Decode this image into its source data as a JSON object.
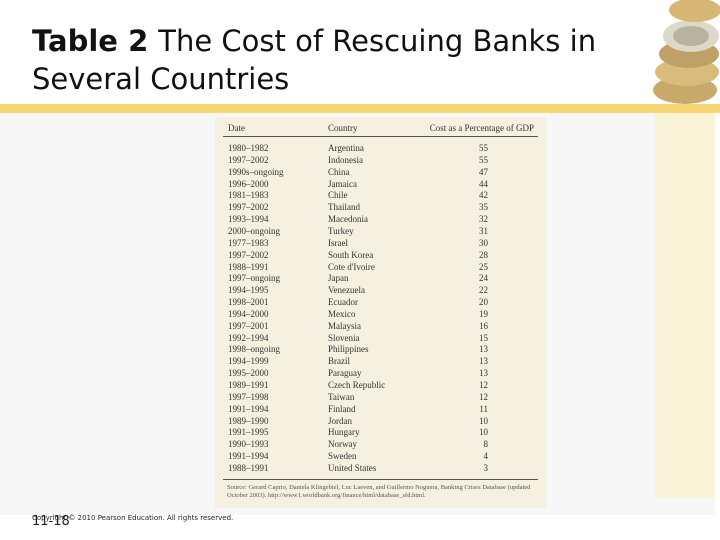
{
  "header": {
    "title_bold": "Table 2",
    "title": "The Cost of Rescuing Banks in Several Countries"
  },
  "table": {
    "columns": [
      "Date",
      "Country",
      "Cost as a Percentage of GDP"
    ],
    "rows": [
      [
        "1980–1982",
        "Argentina",
        55
      ],
      [
        "1997–2002",
        "Indonesia",
        55
      ],
      [
        "1990s–ongoing",
        "China",
        47
      ],
      [
        "1996–2000",
        "Jamaica",
        44
      ],
      [
        "1981–1983",
        "Chile",
        42
      ],
      [
        "1997–2002",
        "Thailand",
        35
      ],
      [
        "1993–1994",
        "Macedonia",
        32
      ],
      [
        "2000–ongoing",
        "Turkey",
        31
      ],
      [
        "1977–1983",
        "Israel",
        30
      ],
      [
        "1997–2002",
        "South Korea",
        28
      ],
      [
        "1988–1991",
        "Cote d'Ivoire",
        25
      ],
      [
        "1997–ongoing",
        "Japan",
        24
      ],
      [
        "1994–1995",
        "Venezuela",
        22
      ],
      [
        "1998–2001",
        "Ecuador",
        20
      ],
      [
        "1994–2000",
        "Mexico",
        19
      ],
      [
        "1997–2001",
        "Malaysia",
        16
      ],
      [
        "1992–1994",
        "Slovenia",
        15
      ],
      [
        "1998–ongoing",
        "Philippines",
        13
      ],
      [
        "1994–1999",
        "Brazil",
        13
      ],
      [
        "1995–2000",
        "Paraguay",
        13
      ],
      [
        "1989–1991",
        "Czech Republic",
        12
      ],
      [
        "1997–1998",
        "Taiwan",
        12
      ],
      [
        "1991–1994",
        "Finland",
        11
      ],
      [
        "1989–1990",
        "Jordan",
        10
      ],
      [
        "1991–1995",
        "Hungary",
        10
      ],
      [
        "1990–1993",
        "Norway",
        8
      ],
      [
        "1991–1994",
        "Sweden",
        4
      ],
      [
        "1988–1991",
        "United States",
        3
      ]
    ],
    "source": "Source: Gerard Caprio, Daniela Klingebiel, Luc Laeven, and Guillermo Noguera, Banking Crises Database (updated October 2003). http://www1.worldbank.org/finance/html/database_sfd.html."
  },
  "footer": {
    "copyright": "Copyright © 2010 Pearson Education. All rights reserved.",
    "slide_number": "11-18"
  }
}
